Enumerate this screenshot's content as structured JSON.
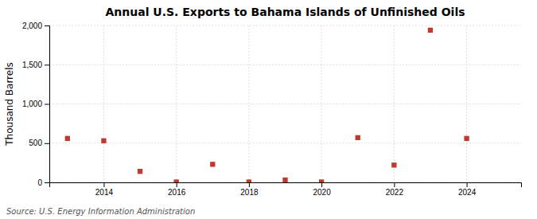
{
  "chart_data": {
    "type": "scatter",
    "title": "Annual U.S. Exports to Bahama Islands of Unfinished Oils",
    "ylabel": "Thousand Barrels",
    "annotations": [
      "Source: U.S. Energy Information Administration"
    ],
    "x": [
      2013,
      2014,
      2015,
      2016,
      2017,
      2018,
      2019,
      2020,
      2021,
      2022,
      2023,
      2024
    ],
    "values": [
      560,
      530,
      140,
      5,
      230,
      5,
      30,
      5,
      570,
      220,
      1940,
      560
    ],
    "color": "#c0392b",
    "marker": "square",
    "xlim": [
      2012.5,
      2025.5
    ],
    "xticks": [
      2014,
      2016,
      2018,
      2020,
      2022,
      2024
    ],
    "ylim": [
      0,
      2000
    ],
    "yticks": [
      0,
      500,
      {
        "value": 1000,
        "label": "1,000"
      },
      {
        "value": 1500,
        "label": "1,500"
      },
      {
        "value": 2000,
        "label": "2,000"
      }
    ],
    "grid": true
  }
}
